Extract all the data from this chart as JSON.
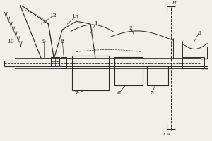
{
  "bg_color": "#f0efe8",
  "line_color": "#2a2a2a",
  "figsize": [
    3.0,
    2.0
  ],
  "dpi": 100,
  "xlim": [
    0,
    300
  ],
  "ylim": [
    0,
    200
  ]
}
